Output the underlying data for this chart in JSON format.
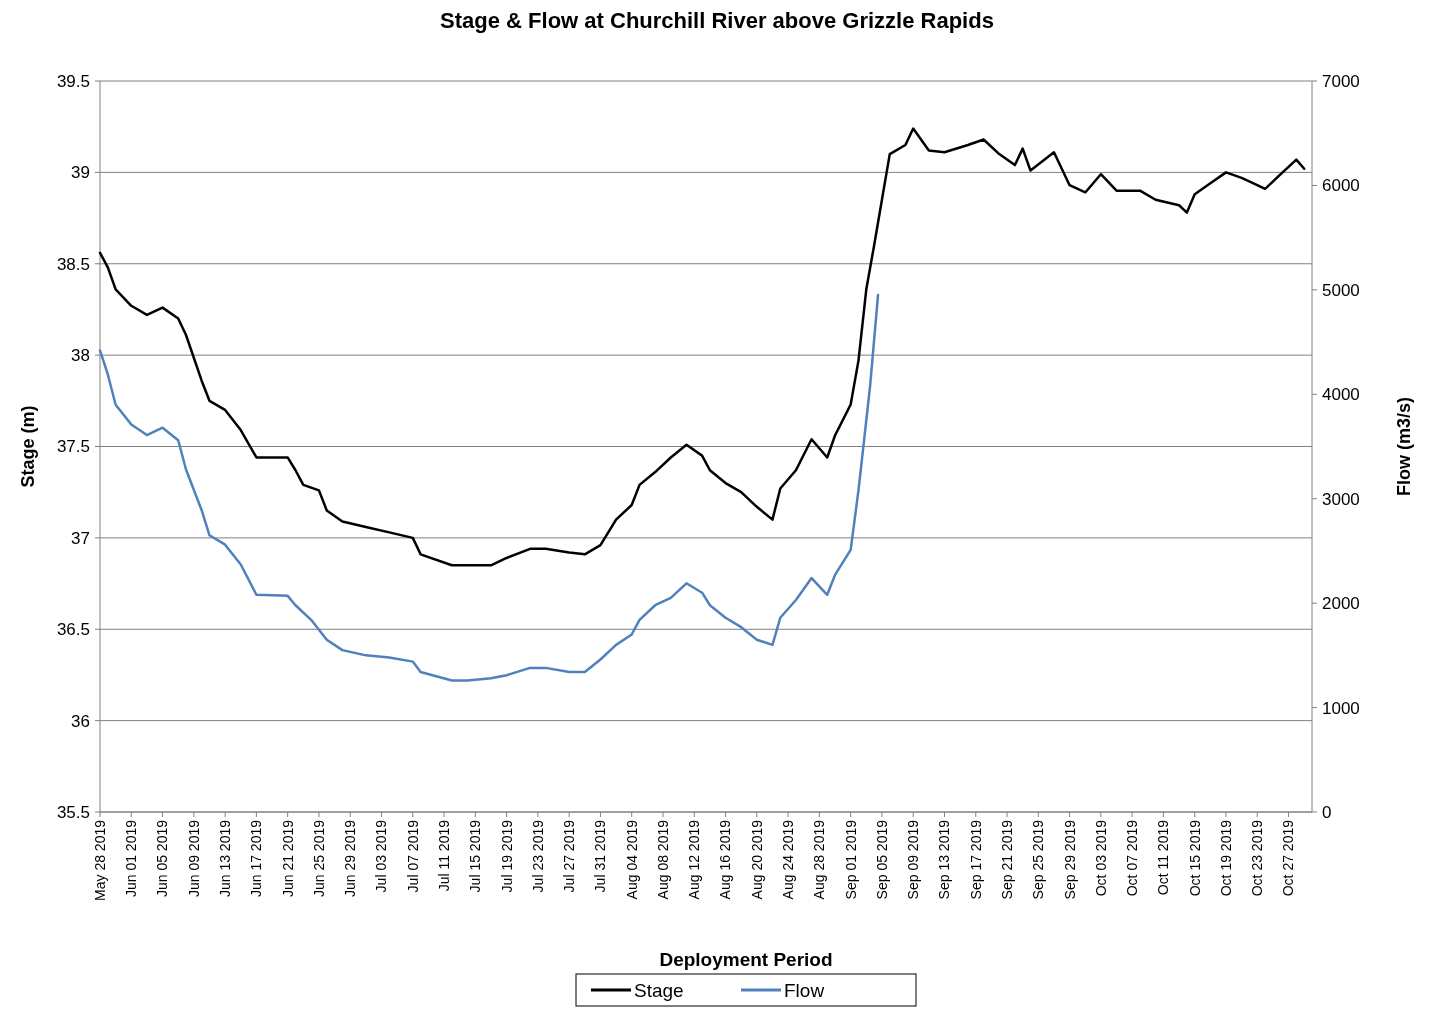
{
  "chart_data": {
    "type": "line",
    "title": "Stage & Flow at Churchill River above Grizzle Rapids",
    "xlabel": "Deployment Period",
    "ylabel": "Stage (m)",
    "y2label": "Flow (m3/s)",
    "xlim": [
      "2019-05-28",
      "2019-10-30"
    ],
    "xticks": [
      {
        "value": "2019-05-28",
        "label": "May 28 2019"
      },
      {
        "value": "2019-06-01",
        "label": "Jun 01 2019"
      },
      {
        "value": "2019-06-05",
        "label": "Jun 05 2019"
      },
      {
        "value": "2019-06-09",
        "label": "Jun 09 2019"
      },
      {
        "value": "2019-06-13",
        "label": "Jun 13 2019"
      },
      {
        "value": "2019-06-17",
        "label": "Jun 17 2019"
      },
      {
        "value": "2019-06-21",
        "label": "Jun 21 2019"
      },
      {
        "value": "2019-06-25",
        "label": "Jun 25 2019"
      },
      {
        "value": "2019-06-29",
        "label": "Jun 29 2019"
      },
      {
        "value": "2019-07-03",
        "label": "Jul 03 2019"
      },
      {
        "value": "2019-07-07",
        "label": "Jul 07 2019"
      },
      {
        "value": "2019-07-11",
        "label": "Jul 11 2019"
      },
      {
        "value": "2019-07-15",
        "label": "Jul 15 2019"
      },
      {
        "value": "2019-07-19",
        "label": "Jul 19 2019"
      },
      {
        "value": "2019-07-23",
        "label": "Jul 23 2019"
      },
      {
        "value": "2019-07-27",
        "label": "Jul 27 2019"
      },
      {
        "value": "2019-07-31",
        "label": "Jul 31 2019"
      },
      {
        "value": "2019-08-04",
        "label": "Aug 04 2019"
      },
      {
        "value": "2019-08-08",
        "label": "Aug 08 2019"
      },
      {
        "value": "2019-08-12",
        "label": "Aug 12 2019"
      },
      {
        "value": "2019-08-16",
        "label": "Aug 16 2019"
      },
      {
        "value": "2019-08-20",
        "label": "Aug 20 2019"
      },
      {
        "value": "2019-08-24",
        "label": "Aug 24 2019"
      },
      {
        "value": "2019-08-28",
        "label": "Aug 28 2019"
      },
      {
        "value": "2019-09-01",
        "label": "Sep 01 2019"
      },
      {
        "value": "2019-09-05",
        "label": "Sep 05 2019"
      },
      {
        "value": "2019-09-09",
        "label": "Sep 09 2019"
      },
      {
        "value": "2019-09-13",
        "label": "Sep 13 2019"
      },
      {
        "value": "2019-09-17",
        "label": "Sep 17 2019"
      },
      {
        "value": "2019-09-21",
        "label": "Sep 21 2019"
      },
      {
        "value": "2019-09-25",
        "label": "Sep 25 2019"
      },
      {
        "value": "2019-09-29",
        "label": "Sep 29 2019"
      },
      {
        "value": "2019-10-03",
        "label": "Oct 03 2019"
      },
      {
        "value": "2019-10-07",
        "label": "Oct 07 2019"
      },
      {
        "value": "2019-10-11",
        "label": "Oct 11 2019"
      },
      {
        "value": "2019-10-15",
        "label": "Oct 15 2019"
      },
      {
        "value": "2019-10-19",
        "label": "Oct 19 2019"
      },
      {
        "value": "2019-10-23",
        "label": "Oct 23 2019"
      },
      {
        "value": "2019-10-27",
        "label": "Oct 27 2019"
      }
    ],
    "ylim": [
      35.5,
      39.5
    ],
    "yticks": [
      35.5,
      36,
      36.5,
      37,
      37.5,
      38,
      38.5,
      39,
      39.5
    ],
    "y2lim": [
      0,
      7000
    ],
    "y2ticks": [
      0,
      1000,
      2000,
      3000,
      4000,
      5000,
      6000,
      7000
    ],
    "grid": "y",
    "legend": "bottom",
    "series": [
      {
        "name": "Stage",
        "color": "#000000",
        "x": [
          "2019-05-28",
          "2019-05-29",
          "2019-05-30",
          "2019-06-01",
          "2019-06-03",
          "2019-06-05",
          "2019-06-07",
          "2019-06-08",
          "2019-06-10",
          "2019-06-11",
          "2019-06-13",
          "2019-06-15",
          "2019-06-17",
          "2019-06-21",
          "2019-06-22",
          "2019-06-23",
          "2019-06-25",
          "2019-06-26",
          "2019-06-28",
          "2019-07-01",
          "2019-07-04",
          "2019-07-07",
          "2019-07-08",
          "2019-07-12",
          "2019-07-14",
          "2019-07-17",
          "2019-07-19",
          "2019-07-22",
          "2019-07-24",
          "2019-07-27",
          "2019-07-29",
          "2019-07-31",
          "2019-08-02",
          "2019-08-04",
          "2019-08-05",
          "2019-08-07",
          "2019-08-09",
          "2019-08-11",
          "2019-08-13",
          "2019-08-14",
          "2019-08-16",
          "2019-08-18",
          "2019-08-20",
          "2019-08-22",
          "2019-08-23",
          "2019-08-25",
          "2019-08-27",
          "2019-08-29",
          "2019-08-30",
          "2019-09-01",
          "2019-09-02",
          "2019-09-03",
          "2019-09-04",
          "2019-09-05",
          "2019-09-06",
          "2019-09-08",
          "2019-09-09",
          "2019-09-11",
          "2019-09-13",
          "2019-09-16",
          "2019-09-18",
          "2019-09-20",
          "2019-09-22",
          "2019-09-23",
          "2019-09-24",
          "2019-09-27",
          "2019-09-29",
          "2019-10-01",
          "2019-10-03",
          "2019-10-05",
          "2019-10-08",
          "2019-10-10",
          "2019-10-13",
          "2019-10-14",
          "2019-10-15",
          "2019-10-17",
          "2019-10-19",
          "2019-10-21",
          "2019-10-23",
          "2019-10-24",
          "2019-10-26",
          "2019-10-28",
          "2019-10-29"
        ],
        "values": [
          38.56,
          38.48,
          38.36,
          38.27,
          38.22,
          38.26,
          38.2,
          38.11,
          37.86,
          37.75,
          37.7,
          37.59,
          37.44,
          37.44,
          37.37,
          37.29,
          37.26,
          37.15,
          37.09,
          37.06,
          37.03,
          37.0,
          36.91,
          36.85,
          36.85,
          36.85,
          36.89,
          36.94,
          36.94,
          36.92,
          36.91,
          36.96,
          37.1,
          37.18,
          37.29,
          37.36,
          37.44,
          37.51,
          37.45,
          37.37,
          37.3,
          37.25,
          37.17,
          37.1,
          37.27,
          37.37,
          37.54,
          37.44,
          37.56,
          37.73,
          37.97,
          38.36,
          38.6,
          38.85,
          39.1,
          39.15,
          39.24,
          39.12,
          39.11,
          39.15,
          39.18,
          39.1,
          39.04,
          39.13,
          39.01,
          39.11,
          38.93,
          38.89,
          38.99,
          38.9,
          38.9,
          38.85,
          38.82,
          38.78,
          38.88,
          38.94,
          39.0,
          38.97,
          38.93,
          38.91,
          38.99,
          39.07,
          39.02
        ]
      },
      {
        "name": "Flow",
        "color": "#4f81bd",
        "axis": "y2",
        "x": [
          "2019-05-28",
          "2019-05-29",
          "2019-05-30",
          "2019-06-01",
          "2019-06-03",
          "2019-06-05",
          "2019-06-07",
          "2019-06-08",
          "2019-06-10",
          "2019-06-11",
          "2019-06-13",
          "2019-06-15",
          "2019-06-17",
          "2019-06-21",
          "2019-06-22",
          "2019-06-24",
          "2019-06-26",
          "2019-06-28",
          "2019-07-01",
          "2019-07-04",
          "2019-07-07",
          "2019-07-08",
          "2019-07-12",
          "2019-07-14",
          "2019-07-17",
          "2019-07-19",
          "2019-07-22",
          "2019-07-24",
          "2019-07-27",
          "2019-07-29",
          "2019-07-31",
          "2019-08-02",
          "2019-08-04",
          "2019-08-05",
          "2019-08-07",
          "2019-08-09",
          "2019-08-11",
          "2019-08-13",
          "2019-08-14",
          "2019-08-16",
          "2019-08-18",
          "2019-08-20",
          "2019-08-22",
          "2019-08-23",
          "2019-08-25",
          "2019-08-27",
          "2019-08-29",
          "2019-08-30",
          "2019-09-01",
          "2019-09-02",
          "2019-09-03",
          "2019-09-03T12:00",
          "2019-09-04T12:00"
        ],
        "values": [
          4420,
          4190,
          3900,
          3710,
          3610,
          3680,
          3560,
          3280,
          2890,
          2650,
          2560,
          2370,
          2080,
          2070,
          1980,
          1840,
          1650,
          1550,
          1500,
          1480,
          1440,
          1340,
          1260,
          1260,
          1280,
          1310,
          1380,
          1380,
          1340,
          1340,
          1460,
          1600,
          1700,
          1840,
          1980,
          2050,
          2190,
          2100,
          1980,
          1860,
          1770,
          1650,
          1600,
          1860,
          2030,
          2240,
          2080,
          2270,
          2510,
          3080,
          3750,
          4090,
          4950
        ]
      }
    ]
  }
}
